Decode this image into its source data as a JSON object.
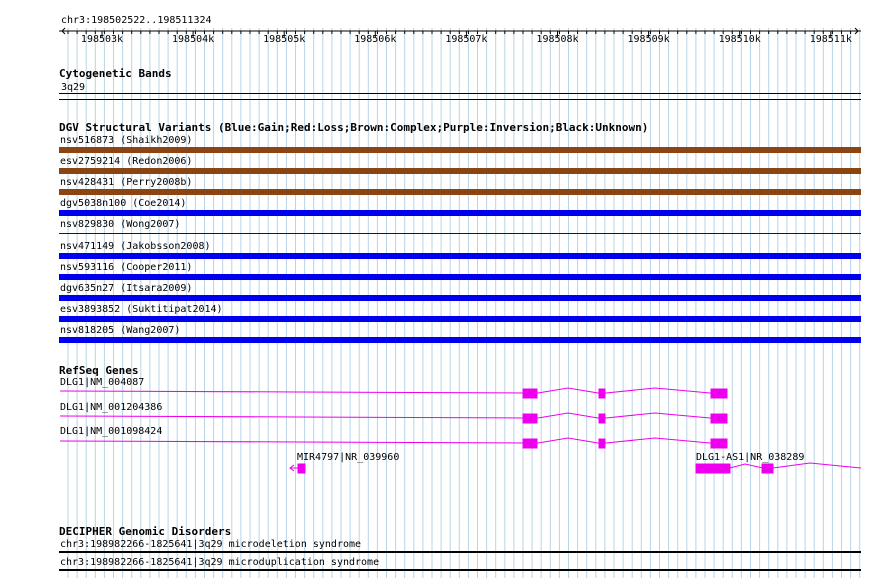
{
  "ruler": {
    "coord": "chr3:198502522..198511324",
    "ticks": [
      "198503k",
      "198504k",
      "198505k",
      "198506k",
      "198507k",
      "198508k",
      "198509k",
      "198510k",
      "198511k"
    ]
  },
  "cytobands": {
    "title": "Cytogenetic Bands",
    "band": "3q29"
  },
  "dgv": {
    "title": "DGV Structural Variants (Blue:Gain;Red:Loss;Brown:Complex;Purple:Inversion;Black:Unknown)",
    "variants": [
      {
        "label": "nsv516873 (Shaikh2009)",
        "color": "#8b4513"
      },
      {
        "label": "esv2759214 (Redon2006)",
        "color": "#8b4513"
      },
      {
        "label": "nsv428431 (Perry2008b)",
        "color": "#8b4513"
      },
      {
        "label": "dgv5038n100 (Coe2014)",
        "color": "#0000ee"
      },
      {
        "label": "nsv829830 (Wong2007)",
        "color": "#0000ee"
      },
      {
        "label": "nsv471149 (Jakobsson2008)",
        "color": "#0000ee"
      },
      {
        "label": "nsv593116 (Cooper2011)",
        "color": "#0000ee"
      },
      {
        "label": "dgv635n27 (Itsara2009)",
        "color": "#0000ee"
      },
      {
        "label": "esv3893852 (Suktitipat2014)",
        "color": "#0000ee"
      },
      {
        "label": "nsv818205 (Wang2007)",
        "color": "#0000ee"
      }
    ]
  },
  "refseq": {
    "title": "RefSeq Genes",
    "color": "#ee00ee",
    "genes": [
      {
        "label": "DLG1|NM_004087"
      },
      {
        "label": "DLG1|NM_001204386"
      },
      {
        "label": "DLG1|NM_001098424"
      }
    ],
    "mir": {
      "label": "MIR4797|NR_039960"
    },
    "as1": {
      "label": "DLG1-AS1|NR_038289"
    }
  },
  "decipher": {
    "title": "DECIPHER Genomic Disorders",
    "items": [
      {
        "label": "chr3:198982266-1825641|3q29 microdeletion syndrome"
      },
      {
        "label": "chr3:198982266-1825641|3q29 microduplication syndrome"
      }
    ]
  }
}
